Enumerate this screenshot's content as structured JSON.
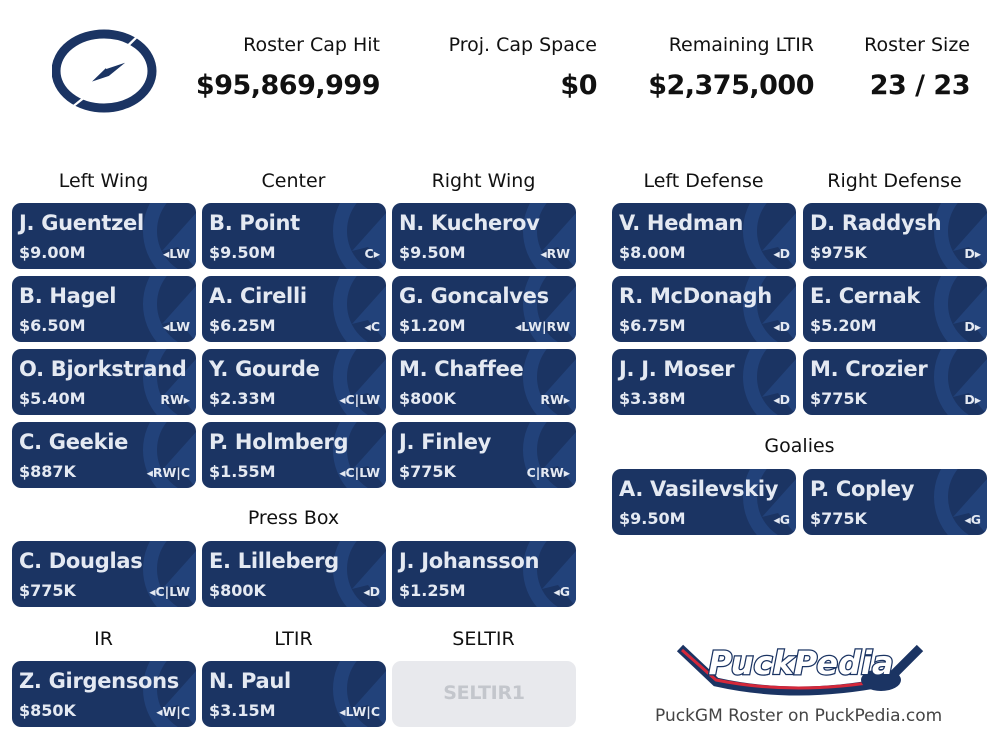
{
  "header": {
    "team_logo": "tampa-bay-lightning-logo",
    "stats": [
      {
        "label": "Roster Cap Hit",
        "value": "$95,869,999"
      },
      {
        "label": "Proj. Cap Space",
        "value": "$0"
      },
      {
        "label": "Remaining LTIR",
        "value": "$2,375,000"
      },
      {
        "label": "Roster Size",
        "value": "23 / 23"
      }
    ]
  },
  "colors": {
    "card_bg": "#1b3463",
    "card_text": "#e4e9f2",
    "empty_bg": "#e8e9ed"
  },
  "sections": {
    "left_wing": "Left Wing",
    "center": "Center",
    "right_wing": "Right Wing",
    "left_defense": "Left Defense",
    "right_defense": "Right Defense",
    "goalies": "Goalies",
    "press_box": "Press Box",
    "ir": "IR",
    "ltir": "LTIR",
    "seltir": "SELTIR"
  },
  "left_wing": [
    {
      "name": "J. Guentzel",
      "cap": "$9.00M",
      "pos": "◂LW"
    },
    {
      "name": "B. Hagel",
      "cap": "$6.50M",
      "pos": "◂LW"
    },
    {
      "name": "O. Bjorkstrand",
      "cap": "$5.40M",
      "pos": "RW▸"
    },
    {
      "name": "C. Geekie",
      "cap": "$887K",
      "pos": "◂RW|C"
    }
  ],
  "center": [
    {
      "name": "B. Point",
      "cap": "$9.50M",
      "pos": "C▸"
    },
    {
      "name": "A. Cirelli",
      "cap": "$6.25M",
      "pos": "◂C"
    },
    {
      "name": "Y. Gourde",
      "cap": "$2.33M",
      "pos": "◂C|LW"
    },
    {
      "name": "P. Holmberg",
      "cap": "$1.55M",
      "pos": "◂C|LW"
    }
  ],
  "right_wing": [
    {
      "name": "N. Kucherov",
      "cap": "$9.50M",
      "pos": "◂RW"
    },
    {
      "name": "G. Goncalves",
      "cap": "$1.20M",
      "pos": "◂LW|RW"
    },
    {
      "name": "M. Chaffee",
      "cap": "$800K",
      "pos": "RW▸"
    },
    {
      "name": "J. Finley",
      "cap": "$775K",
      "pos": "C|RW▸"
    }
  ],
  "left_defense": [
    {
      "name": "V. Hedman",
      "cap": "$8.00M",
      "pos": "◂D"
    },
    {
      "name": "R. McDonagh",
      "cap": "$6.75M",
      "pos": "◂D"
    },
    {
      "name": "J. J. Moser",
      "cap": "$3.38M",
      "pos": "◂D"
    }
  ],
  "right_defense": [
    {
      "name": "D. Raddysh",
      "cap": "$975K",
      "pos": "D▸"
    },
    {
      "name": "E. Cernak",
      "cap": "$5.20M",
      "pos": "D▸"
    },
    {
      "name": "M. Crozier",
      "cap": "$775K",
      "pos": "D▸"
    }
  ],
  "goalies": [
    {
      "name": "A. Vasilevskiy",
      "cap": "$9.50M",
      "pos": "◂G"
    },
    {
      "name": "P. Copley",
      "cap": "$775K",
      "pos": "◂G"
    }
  ],
  "press_box": [
    {
      "name": "C. Douglas",
      "cap": "$775K",
      "pos": "◂C|LW"
    },
    {
      "name": "E. Lilleberg",
      "cap": "$800K",
      "pos": "◂D"
    },
    {
      "name": "J. Johansson",
      "cap": "$1.25M",
      "pos": "◂G"
    }
  ],
  "ir": [
    {
      "name": "Z. Girgensons",
      "cap": "$850K",
      "pos": "◂W|C"
    }
  ],
  "ltir": [
    {
      "name": "N. Paul",
      "cap": "$3.15M",
      "pos": "◂LW|C"
    }
  ],
  "seltir": [
    {
      "name": "SELTIR1",
      "empty": true
    }
  ],
  "footer": {
    "brand_logo": "PuckPedia",
    "text": "PuckGM Roster on PuckPedia.com"
  }
}
